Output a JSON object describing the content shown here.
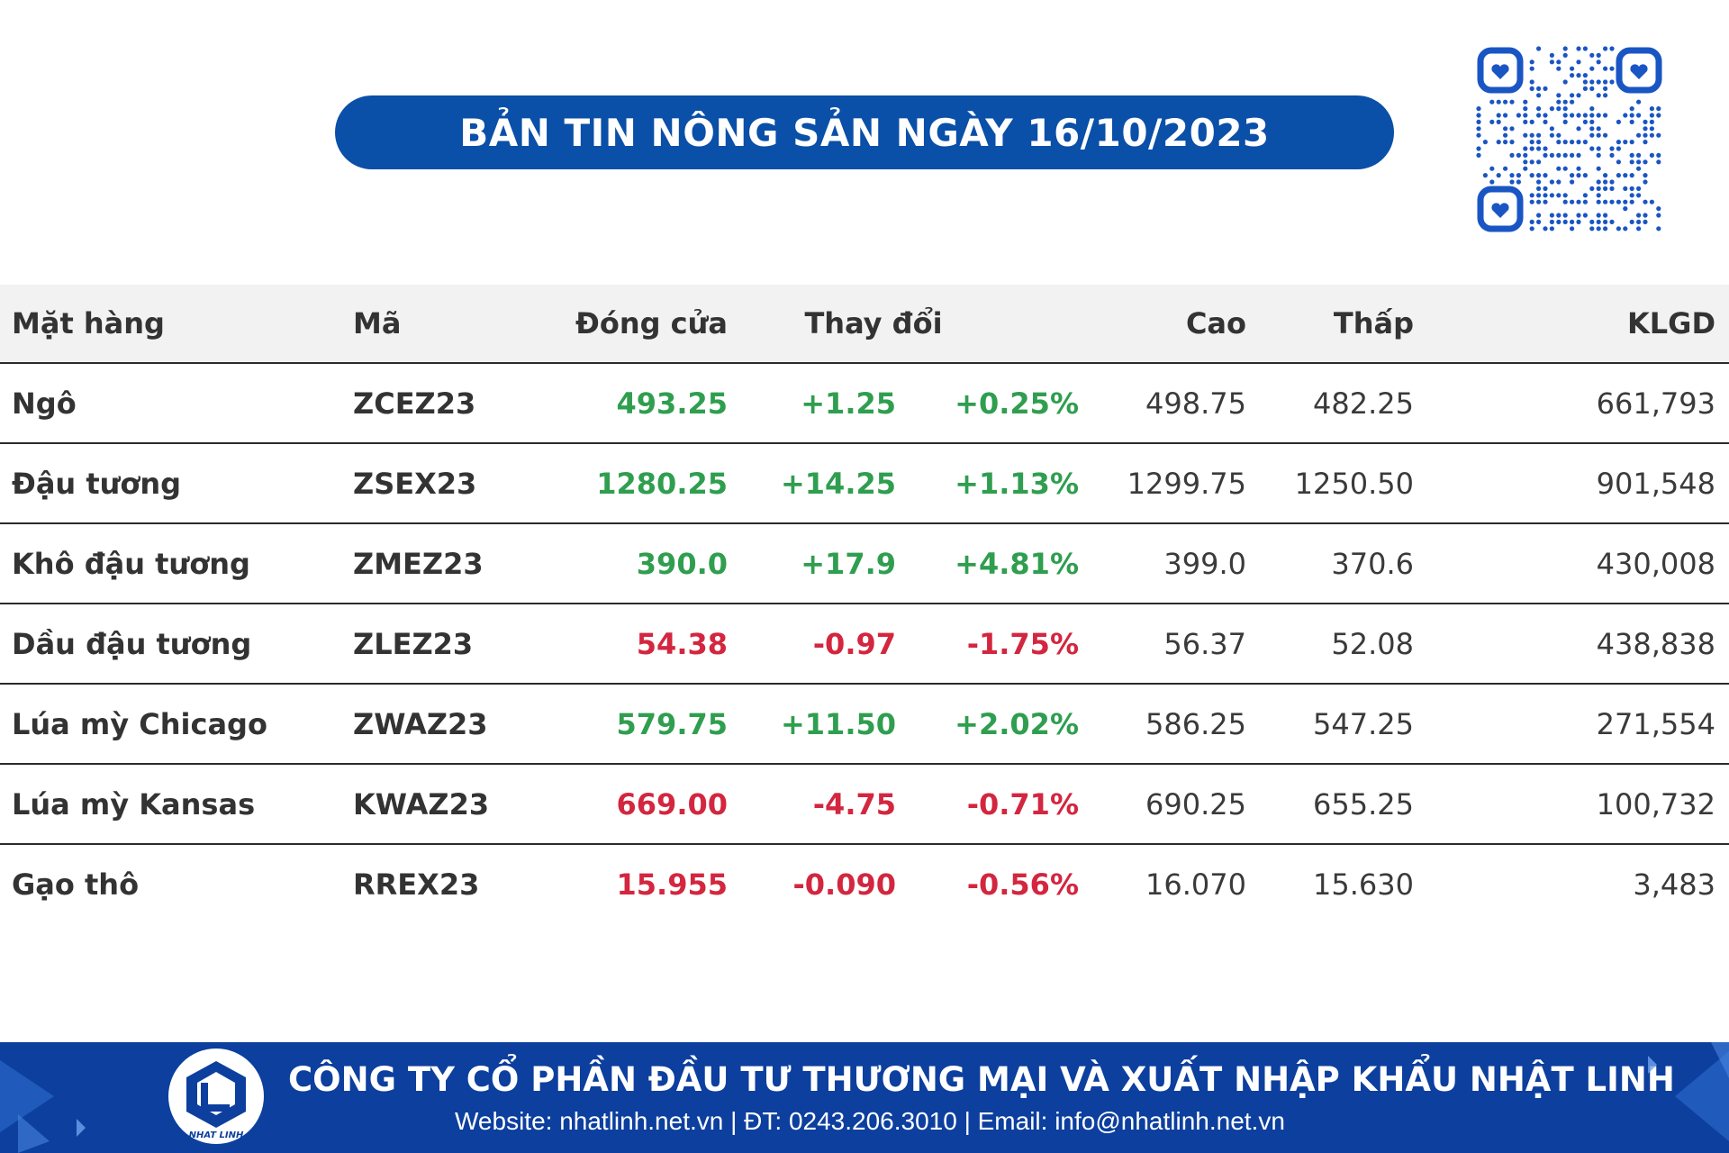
{
  "title": "BẢN TIN NÔNG SẢN NGÀY 16/10/2023",
  "icons": {
    "qr": "qr-code-icon",
    "logo": "nhat-linh-logo-icon"
  },
  "colors": {
    "brand_blue": "#0a4fa8",
    "up": "#2f9e4f",
    "down": "#d3263f"
  },
  "table": {
    "headers": {
      "name": "Mặt hàng",
      "code": "Mã",
      "close": "Đóng cửa",
      "change": "Thay đổi",
      "high": "Cao",
      "low": "Thấp",
      "volume": "KLGD"
    },
    "rows": [
      {
        "name": "Ngô",
        "code": "ZCEZ23",
        "close": "493.25",
        "change": "+1.25",
        "pct": "+0.25%",
        "high": "498.75",
        "low": "482.25",
        "volume": "661,793",
        "trend": "up"
      },
      {
        "name": "Đậu tương",
        "code": "ZSEX23",
        "close": "1280.25",
        "change": "+14.25",
        "pct": "+1.13%",
        "high": "1299.75",
        "low": "1250.50",
        "volume": "901,548",
        "trend": "up"
      },
      {
        "name": "Khô đậu tương",
        "code": "ZMEZ23",
        "close": "390.0",
        "change": "+17.9",
        "pct": "+4.81%",
        "high": "399.0",
        "low": "370.6",
        "volume": "430,008",
        "trend": "up"
      },
      {
        "name": "Dầu đậu tương",
        "code": "ZLEZ23",
        "close": "54.38",
        "change": "-0.97",
        "pct": "-1.75%",
        "high": "56.37",
        "low": "52.08",
        "volume": "438,838",
        "trend": "down"
      },
      {
        "name": "Lúa mỳ Chicago",
        "code": "ZWAZ23",
        "close": "579.75",
        "change": "+11.50",
        "pct": "+2.02%",
        "high": "586.25",
        "low": "547.25",
        "volume": "271,554",
        "trend": "up"
      },
      {
        "name": "Lúa mỳ Kansas",
        "code": "KWAZ23",
        "close": "669.00",
        "change": "-4.75",
        "pct": "-0.71%",
        "high": "690.25",
        "low": "655.25",
        "volume": "100,732",
        "trend": "down"
      },
      {
        "name": "Gạo thô",
        "code": "RREX23",
        "close": "15.955",
        "change": "-0.090",
        "pct": "-0.56%",
        "high": "16.070",
        "low": "15.630",
        "volume": "3,483",
        "trend": "down"
      }
    ]
  },
  "footer": {
    "company": "CÔNG TY CỔ PHẦN ĐẦU TƯ THƯƠNG MẠI VÀ XUẤT NHẬP KHẨU NHẬT LINH",
    "contact": "Website: nhatlinh.net.vn | ĐT: 0243.206.3010 | Email: info@nhatlinh.net.vn",
    "logo_text": "NHAT LINH"
  }
}
